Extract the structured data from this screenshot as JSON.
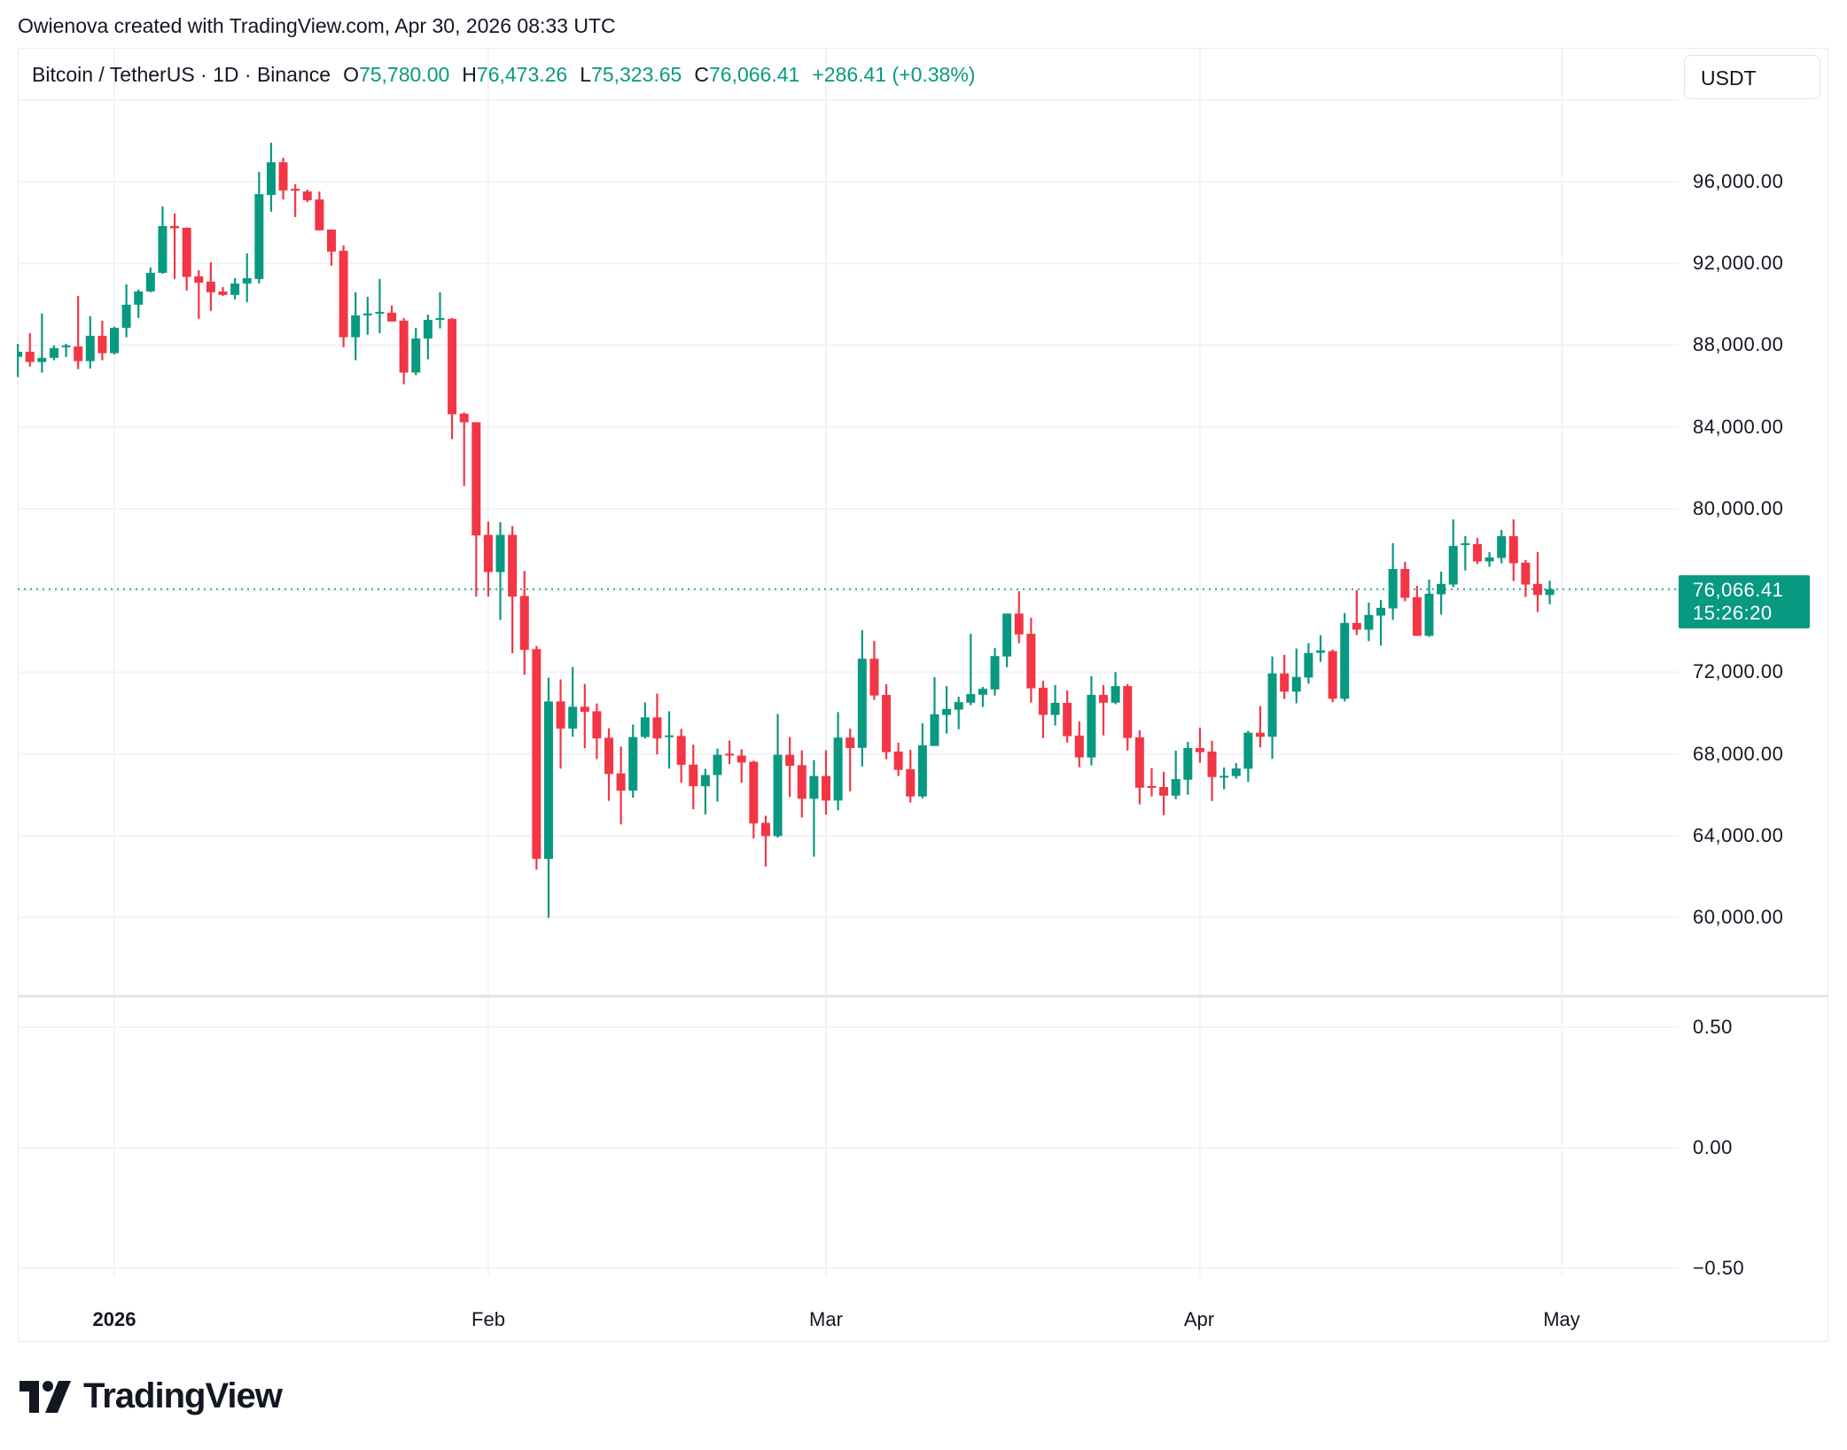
{
  "title": "Owienova created with TradingView.com, Apr 30, 2026 08:33 UTC",
  "legend": {
    "symbol": "Bitcoin / TetherUS · 1D · Binance",
    "open_label": "O",
    "open": "75,780.00",
    "high_label": "H",
    "high": "76,473.26",
    "low_label": "L",
    "low": "75,323.65",
    "close_label": "C",
    "close": "76,066.41",
    "change": "+286.41 (+0.38%)"
  },
  "currency_button": "USDT",
  "last_price": {
    "price": "76,066.41",
    "countdown": "15:26:20"
  },
  "price_axis": [
    "96,000.00",
    "92,000.00",
    "88,000.00",
    "84,000.00",
    "80,000.00",
    "72,000.00",
    "68,000.00",
    "64,000.00",
    "60,000.00"
  ],
  "lower_pane_axis": [
    "0.50",
    "0.00",
    "−0.50"
  ],
  "time_axis": [
    "2026",
    "Feb",
    "Mar",
    "Apr",
    "May"
  ],
  "logo_text": "TradingView",
  "colors": {
    "up": "#089981",
    "down": "#F23645",
    "grid": "#f0f3fa",
    "text": "#131722"
  },
  "chart_data": {
    "type": "candlestick",
    "title": "Bitcoin / TetherUS · 1D · Binance",
    "interval": "1D",
    "first_candle_date": "2025-12-24",
    "last_candle_date": "2026-04-30",
    "ylim": [
      56500,
      102000
    ],
    "y_ticks": [
      60000,
      64000,
      68000,
      72000,
      76000,
      80000,
      84000,
      88000,
      92000,
      96000,
      100000
    ],
    "x_ticks": [
      {
        "label": "2026",
        "date": "2026-01-01"
      },
      {
        "label": "Feb",
        "date": "2026-02-01"
      },
      {
        "label": "Mar",
        "date": "2026-03-01"
      },
      {
        "label": "Apr",
        "date": "2026-04-01"
      },
      {
        "label": "May",
        "date": "2026-05-01"
      }
    ],
    "last_price": 76066.41,
    "ohlc_fields": [
      "open",
      "high",
      "low",
      "close"
    ],
    "ohlc": [
      [
        87430,
        88060,
        86440,
        87680
      ],
      [
        87680,
        88590,
        86950,
        87180
      ],
      [
        87180,
        89550,
        86660,
        87380
      ],
      [
        87380,
        87990,
        87260,
        87860
      ],
      [
        87930,
        88070,
        87420,
        87990
      ],
      [
        87940,
        90410,
        86830,
        87220
      ],
      [
        87220,
        89420,
        86860,
        88460
      ],
      [
        88460,
        89200,
        87260,
        87610
      ],
      [
        87610,
        88900,
        87550,
        88850
      ],
      [
        88850,
        90980,
        88390,
        89980
      ],
      [
        89980,
        90720,
        89330,
        90630
      ],
      [
        90630,
        91800,
        90590,
        91540
      ],
      [
        91540,
        94790,
        91500,
        93830
      ],
      [
        93830,
        94440,
        91240,
        93720
      ],
      [
        93750,
        93750,
        90670,
        91340
      ],
      [
        91370,
        91670,
        89290,
        91060
      ],
      [
        91110,
        92060,
        89680,
        90590
      ],
      [
        90630,
        90850,
        90410,
        90460
      ],
      [
        90460,
        91280,
        90240,
        91020
      ],
      [
        91020,
        92490,
        90110,
        91280
      ],
      [
        91240,
        96480,
        91020,
        95390
      ],
      [
        95350,
        97910,
        94530,
        96950
      ],
      [
        96950,
        97170,
        95130,
        95570
      ],
      [
        95650,
        95870,
        94270,
        95580
      ],
      [
        95520,
        95610,
        95000,
        95090
      ],
      [
        95130,
        95520,
        93620,
        93620
      ],
      [
        93660,
        93660,
        91890,
        92580
      ],
      [
        92620,
        92880,
        87900,
        88390
      ],
      [
        88390,
        90590,
        87260,
        89460
      ],
      [
        89460,
        90370,
        88510,
        89550
      ],
      [
        89550,
        91240,
        88590,
        89630
      ],
      [
        89590,
        89940,
        89160,
        89160
      ],
      [
        89200,
        89330,
        86090,
        86660
      ],
      [
        86660,
        88850,
        86530,
        88330
      ],
      [
        88330,
        89500,
        87310,
        89240
      ],
      [
        89240,
        90590,
        88820,
        89330
      ],
      [
        89290,
        89330,
        83410,
        84620
      ],
      [
        84650,
        84710,
        81110,
        84230
      ],
      [
        84230,
        84230,
        75700,
        78690
      ],
      [
        78720,
        79370,
        75700,
        76900
      ],
      [
        76900,
        79340,
        74560,
        78720
      ],
      [
        78720,
        79150,
        72930,
        75700
      ],
      [
        75730,
        76950,
        71880,
        73090
      ],
      [
        73130,
        73290,
        62340,
        62870
      ],
      [
        62870,
        71730,
        59980,
        70570
      ],
      [
        70570,
        71650,
        67280,
        69240
      ],
      [
        69240,
        72260,
        68840,
        70310
      ],
      [
        70310,
        71430,
        68280,
        70060
      ],
      [
        70090,
        70470,
        67750,
        68760
      ],
      [
        68790,
        69260,
        65710,
        67020
      ],
      [
        67050,
        68360,
        64550,
        66210
      ],
      [
        66210,
        69440,
        65860,
        68830
      ],
      [
        68830,
        70520,
        68760,
        69790
      ],
      [
        69790,
        70950,
        67980,
        68760
      ],
      [
        68860,
        70090,
        67280,
        68910
      ],
      [
        68880,
        69230,
        66590,
        67470
      ],
      [
        67480,
        68450,
        65300,
        66420
      ],
      [
        66420,
        67270,
        65040,
        66970
      ],
      [
        66970,
        68260,
        65670,
        67960
      ],
      [
        68010,
        68660,
        67500,
        67950
      ],
      [
        67920,
        68230,
        66600,
        67580
      ],
      [
        67620,
        67670,
        63870,
        64600
      ],
      [
        64630,
        64980,
        62490,
        63980
      ],
      [
        63980,
        69960,
        63910,
        67960
      ],
      [
        67960,
        68830,
        65900,
        67420
      ],
      [
        67450,
        68180,
        64890,
        65810
      ],
      [
        65810,
        67700,
        62980,
        66920
      ],
      [
        66920,
        68180,
        65030,
        65720
      ],
      [
        65720,
        70050,
        65250,
        68800
      ],
      [
        68800,
        69240,
        66170,
        68290
      ],
      [
        68300,
        74050,
        67390,
        72660
      ],
      [
        72660,
        73530,
        70640,
        70860
      ],
      [
        70890,
        71410,
        67740,
        68090
      ],
      [
        68120,
        68550,
        66920,
        67220
      ],
      [
        67250,
        68200,
        65620,
        65920
      ],
      [
        65920,
        69500,
        65830,
        68420
      ],
      [
        68390,
        71760,
        68390,
        69940
      ],
      [
        69910,
        71320,
        69000,
        70200
      ],
      [
        70170,
        70800,
        69210,
        70540
      ],
      [
        70510,
        73880,
        70380,
        70930
      ],
      [
        70900,
        71280,
        70300,
        71190
      ],
      [
        71160,
        73180,
        70860,
        72790
      ],
      [
        72770,
        74870,
        72250,
        74870
      ],
      [
        74870,
        75960,
        73420,
        73850
      ],
      [
        73880,
        74660,
        70510,
        71210
      ],
      [
        71240,
        71580,
        68780,
        69910
      ],
      [
        69910,
        71370,
        69390,
        70500
      ],
      [
        70500,
        71110,
        68560,
        68870
      ],
      [
        68900,
        69590,
        67350,
        67830
      ],
      [
        67830,
        71800,
        67440,
        70890
      ],
      [
        70890,
        71370,
        68910,
        70510
      ],
      [
        70510,
        72010,
        70430,
        71320
      ],
      [
        71320,
        71410,
        68170,
        68780
      ],
      [
        68810,
        69160,
        65530,
        66350
      ],
      [
        66430,
        67310,
        65920,
        66350
      ],
      [
        66380,
        67130,
        65010,
        65960
      ],
      [
        65960,
        68160,
        65790,
        66770
      ],
      [
        66740,
        68590,
        66010,
        68290
      ],
      [
        68290,
        69290,
        67570,
        68090
      ],
      [
        68120,
        68640,
        65700,
        66870
      ],
      [
        66870,
        67340,
        66270,
        66930
      ],
      [
        66920,
        67550,
        66790,
        67290
      ],
      [
        67280,
        69130,
        66630,
        69040
      ],
      [
        69040,
        70340,
        68320,
        68840
      ],
      [
        68840,
        72770,
        67760,
        71940
      ],
      [
        71940,
        72850,
        70690,
        71050
      ],
      [
        71050,
        73160,
        70480,
        71770
      ],
      [
        71740,
        73420,
        71440,
        72940
      ],
      [
        72950,
        73810,
        72510,
        73070
      ],
      [
        73030,
        73110,
        70530,
        70700
      ],
      [
        70700,
        74890,
        70570,
        74410
      ],
      [
        74410,
        76010,
        73820,
        74080
      ],
      [
        74080,
        75410,
        73520,
        74800
      ],
      [
        74770,
        75540,
        73300,
        75150
      ],
      [
        75120,
        78310,
        74560,
        77050
      ],
      [
        77050,
        77400,
        75470,
        75640
      ],
      [
        75670,
        76230,
        73780,
        73780
      ],
      [
        73780,
        76530,
        73730,
        75840
      ],
      [
        75810,
        76920,
        74820,
        76320
      ],
      [
        76290,
        79480,
        76160,
        78180
      ],
      [
        78250,
        78660,
        76980,
        78310
      ],
      [
        78270,
        78570,
        77290,
        77420
      ],
      [
        77420,
        77880,
        77160,
        77620
      ],
      [
        77590,
        78960,
        77330,
        78660
      ],
      [
        78660,
        79480,
        76460,
        77330
      ],
      [
        77360,
        77490,
        75680,
        76290
      ],
      [
        76320,
        77880,
        74950,
        75780
      ],
      [
        75780,
        76473.26,
        75323.65,
        76066.41
      ]
    ],
    "lower_pane": {
      "y_ticks": [
        0.5,
        0,
        -0.5
      ],
      "series": []
    }
  }
}
